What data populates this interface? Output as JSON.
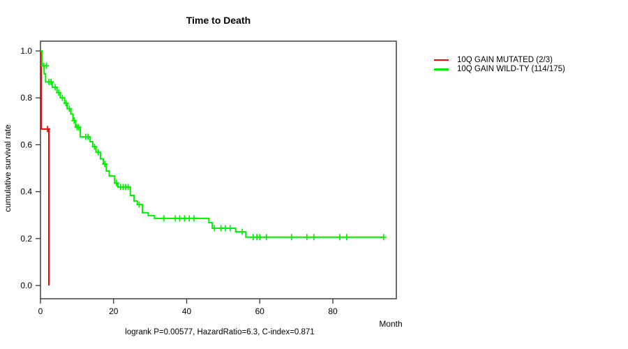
{
  "title": "Time to Death",
  "y_axis_label": "cumulative survival rate",
  "x_axis_label": "Month",
  "footer": "logrank P=0.00577, HazardRatio=6.3, C-index=0.871",
  "stats": {
    "logrank_p": "0.00577",
    "hazard_ratio": "6.3",
    "c_index": "0.871"
  },
  "colors": {
    "mutated": "#ff0000",
    "wildtype": "#00ee00",
    "axis": "#333333"
  },
  "legend": [
    {
      "label": "10Q GAIN MUTATED (2/3)",
      "color": "#ff0000"
    },
    {
      "label": "10Q GAIN WILD-TY (114/175)",
      "color": "#00ee00"
    }
  ],
  "chart_data": {
    "type": "line",
    "subtype": "kaplan-meier-step",
    "title": "Time to Death",
    "xlabel": "Month",
    "ylabel": "cumulative survival rate",
    "xlim": [
      0,
      97
    ],
    "ylim": [
      0.0,
      1.0
    ],
    "x_ticks": [
      0,
      20,
      40,
      60,
      80
    ],
    "y_ticks": [
      0.0,
      0.2,
      0.4,
      0.6,
      0.8,
      1.0
    ],
    "grid": false,
    "legend_position": "outside-top-right",
    "series": [
      {
        "name": "10Q GAIN MUTATED (2/3)",
        "color": "#ff0000",
        "end_time": 2.3,
        "steps": [
          [
            0,
            1.0
          ],
          [
            0.25,
            0.667
          ],
          [
            2.3,
            0.0
          ]
        ],
        "censors": [
          [
            1.9,
            0.667
          ]
        ]
      },
      {
        "name": "10Q GAIN WILD-TY (114/175)",
        "color": "#00ee00",
        "end_time": 94,
        "steps": [
          [
            0,
            1.0
          ],
          [
            0.4,
            0.937
          ],
          [
            1.0,
            0.902
          ],
          [
            1.4,
            0.868
          ],
          [
            3.2,
            0.845
          ],
          [
            4.5,
            0.822
          ],
          [
            5.4,
            0.8
          ],
          [
            6.6,
            0.777
          ],
          [
            7.3,
            0.754
          ],
          [
            8.3,
            0.731
          ],
          [
            8.9,
            0.703
          ],
          [
            9.6,
            0.675
          ],
          [
            10.9,
            0.634
          ],
          [
            13.6,
            0.613
          ],
          [
            14.3,
            0.592
          ],
          [
            15.2,
            0.568
          ],
          [
            16.4,
            0.54
          ],
          [
            17.2,
            0.518
          ],
          [
            18.0,
            0.488
          ],
          [
            18.8,
            0.467
          ],
          [
            20.3,
            0.437
          ],
          [
            21.2,
            0.42
          ],
          [
            24.6,
            0.384
          ],
          [
            25.6,
            0.36
          ],
          [
            26.5,
            0.345
          ],
          [
            27.9,
            0.31
          ],
          [
            29.5,
            0.298
          ],
          [
            31.2,
            0.286
          ],
          [
            46.1,
            0.268
          ],
          [
            47.0,
            0.244
          ],
          [
            53.4,
            0.229
          ],
          [
            56.2,
            0.206
          ]
        ],
        "censors": [
          [
            0.9,
            0.937
          ],
          [
            1.6,
            0.937
          ],
          [
            2.3,
            0.868
          ],
          [
            2.9,
            0.868
          ],
          [
            4.0,
            0.845
          ],
          [
            5.0,
            0.822
          ],
          [
            6.0,
            0.8
          ],
          [
            7.0,
            0.777
          ],
          [
            7.9,
            0.754
          ],
          [
            9.2,
            0.703
          ],
          [
            10.0,
            0.675
          ],
          [
            10.4,
            0.675
          ],
          [
            12.4,
            0.634
          ],
          [
            13.0,
            0.634
          ],
          [
            14.8,
            0.592
          ],
          [
            15.8,
            0.568
          ],
          [
            17.6,
            0.518
          ],
          [
            20.8,
            0.437
          ],
          [
            21.9,
            0.42
          ],
          [
            22.6,
            0.42
          ],
          [
            23.3,
            0.42
          ],
          [
            24.0,
            0.42
          ],
          [
            27.0,
            0.345
          ],
          [
            33.8,
            0.286
          ],
          [
            36.9,
            0.286
          ],
          [
            38.1,
            0.286
          ],
          [
            39.4,
            0.286
          ],
          [
            40.7,
            0.286
          ],
          [
            42.0,
            0.286
          ],
          [
            47.6,
            0.244
          ],
          [
            49.4,
            0.244
          ],
          [
            50.6,
            0.244
          ],
          [
            51.9,
            0.244
          ],
          [
            55.2,
            0.229
          ],
          [
            58.2,
            0.206
          ],
          [
            59.2,
            0.206
          ],
          [
            60.0,
            0.206
          ],
          [
            61.8,
            0.206
          ],
          [
            68.7,
            0.206
          ],
          [
            72.9,
            0.206
          ],
          [
            74.8,
            0.206
          ],
          [
            81.9,
            0.206
          ],
          [
            83.8,
            0.206
          ],
          [
            93.9,
            0.206
          ]
        ]
      }
    ]
  }
}
